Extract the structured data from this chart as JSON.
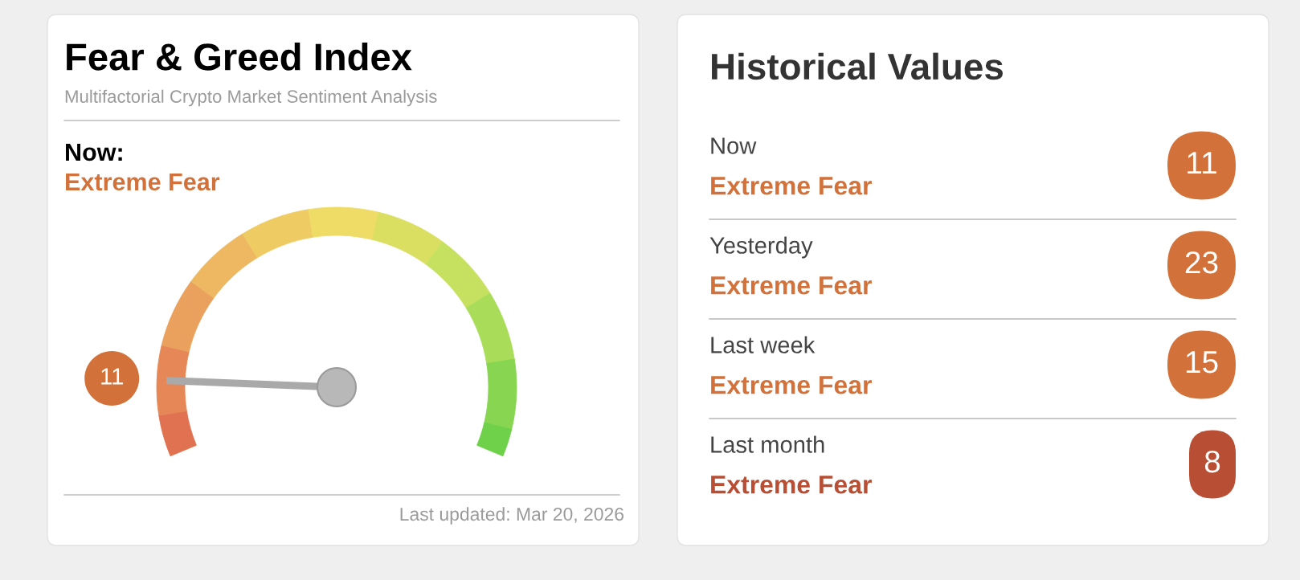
{
  "chart_data": [
    {
      "type": "donut",
      "title": "Fear & Greed Index",
      "subtitle": "Multifactorial Crypto Market Sentiment Analysis",
      "categories": [
        null,
        "11",
        null,
        null,
        null,
        null,
        null,
        null,
        null,
        null,
        null
      ],
      "values": [
        6,
        10,
        10,
        10,
        10,
        10,
        10,
        10,
        10,
        10,
        4
      ],
      "colors": [
        "#e17251",
        "#e58756",
        "#eaa15d",
        "#edb861",
        "#efcb64",
        "#eedc66",
        "#dadf62",
        "#c6e15f",
        "#a9dd59",
        "#87d550",
        "#6fd04a"
      ],
      "needle": "11",
      "annotations": [
        "Now:",
        "Extreme Fear",
        "Last updated: Mar 20, 2026"
      ]
    },
    {
      "type": "other",
      "title": "Historical Values",
      "values": [
        11,
        23,
        15,
        8
      ],
      "colors": [
        "#d2723a",
        "#d2723a",
        "#d2723a",
        "#b84e34"
      ],
      "data_labels": true,
      "annotations": [
        "Now",
        "Extreme Fear",
        "Yesterday",
        "Extreme Fear",
        "Last week",
        "Extreme Fear",
        "Last month",
        "Extreme Fear"
      ]
    }
  ]
}
